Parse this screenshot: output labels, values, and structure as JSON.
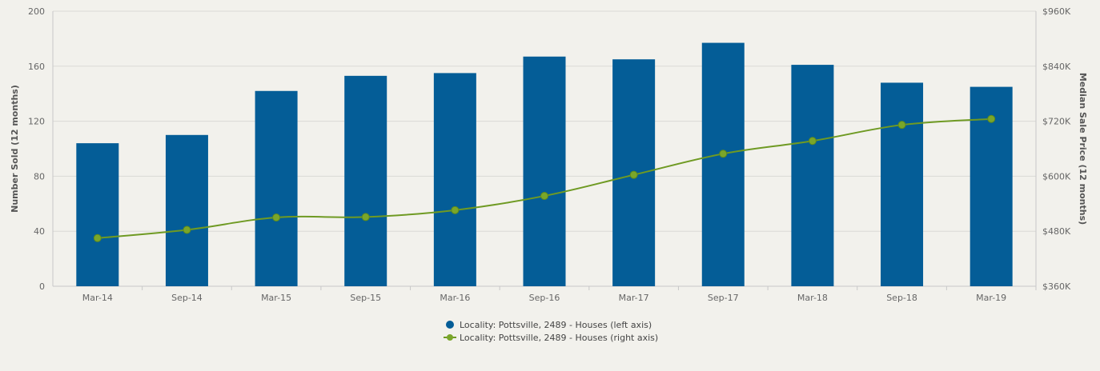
{
  "chart_data": {
    "type": "bar",
    "title": "",
    "categories": [
      "Mar-14",
      "Sep-14",
      "Mar-15",
      "Sep-15",
      "Mar-16",
      "Sep-16",
      "Mar-17",
      "Sep-17",
      "Mar-18",
      "Sep-18",
      "Mar-19"
    ],
    "series": [
      {
        "name": "Locality: Pottsville, 2489 - Houses (left axis)",
        "type": "bar",
        "axis": "left",
        "color": "#045d97",
        "values": [
          104,
          110,
          142,
          153,
          155,
          167,
          165,
          177,
          161,
          148,
          145
        ]
      },
      {
        "name": "Locality: Pottsville, 2489 - Houses (right axis)",
        "type": "line",
        "axis": "right",
        "color": "#6f9a23",
        "values": [
          465,
          483,
          510,
          511,
          526,
          557,
          603,
          649,
          677,
          712,
          725
        ]
      }
    ],
    "ylabel": "Number Sold (12 months)",
    "ylim": [
      0,
      200
    ],
    "yticks": [
      "0",
      "40",
      "80",
      "120",
      "160",
      "200"
    ],
    "ylabel_right": "Median Sale Price (12 months)",
    "ylim_right": [
      360,
      960
    ],
    "yticks_right": [
      "$360K",
      "$480K",
      "$600K",
      "$720K",
      "$840K",
      "$960K"
    ],
    "grid": true,
    "legend_position": "bottom-center"
  }
}
